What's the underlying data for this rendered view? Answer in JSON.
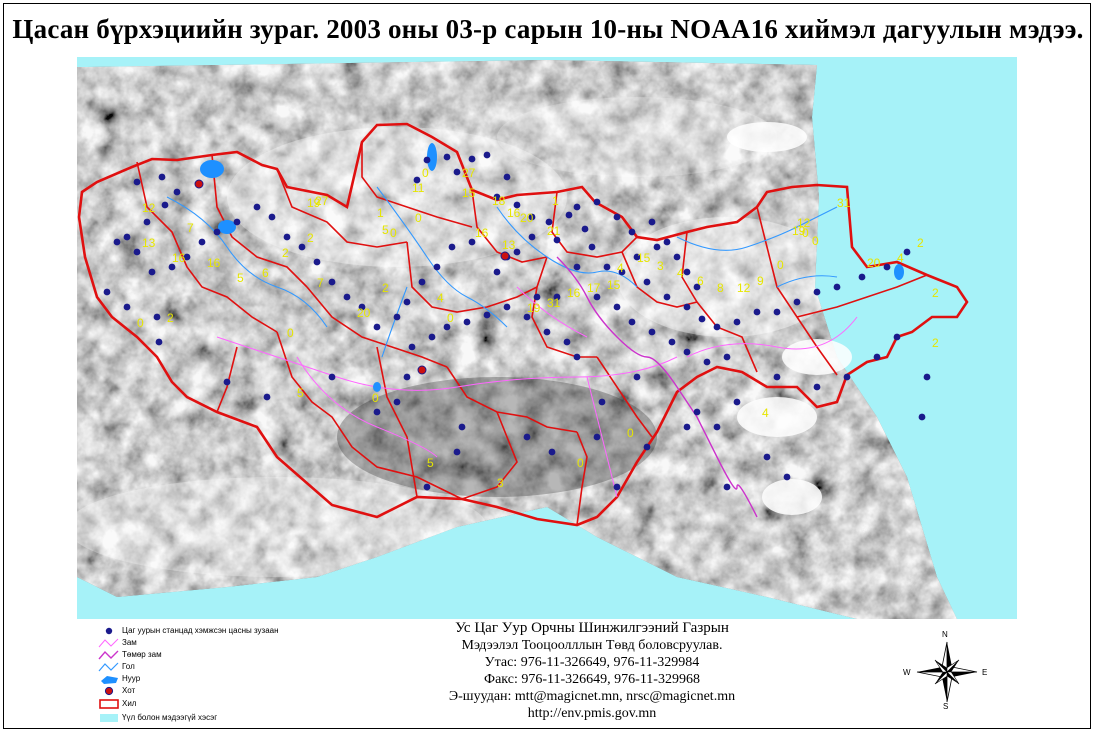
{
  "title": "Цасан бүрхэциийн зураг. 2003 оны 03-р сарын 10-ны NOAA16 хиймэл дагуулын мэдээ.",
  "map": {
    "colors": {
      "sea": "#a6f2f8",
      "border": "#e01010",
      "station": "#1a1a8c",
      "label": "#e6e600",
      "road": "#ff66ff",
      "railway": "#cc33cc",
      "river": "#3399ff",
      "lake": "#1e90ff",
      "city": "#cc1111"
    },
    "snow_depth_labels": [
      "11",
      "27",
      "0",
      "16",
      "21",
      "18",
      "15",
      "20",
      "13",
      "1",
      "0",
      "16",
      "2",
      "5",
      "27",
      "0",
      "1",
      "2",
      "2",
      "12",
      "13",
      "16",
      "19",
      "7",
      "6",
      "5",
      "2",
      "7",
      "16",
      "0",
      "0",
      "5",
      "20",
      "4",
      "0",
      "19",
      "31",
      "16",
      "17",
      "15",
      "4",
      "15",
      "3",
      "4",
      "6",
      "8",
      "12",
      "9",
      "0",
      "19",
      "12",
      "0",
      "31",
      "20",
      "4",
      "2",
      "2",
      "2",
      "0",
      "4",
      "0",
      "5",
      "3",
      "0",
      "0"
    ]
  },
  "legend": {
    "items": [
      {
        "icon": "station-icon",
        "label": "Цаг уурын станцад хэмжсэн цасны зузаан"
      },
      {
        "icon": "road-icon",
        "label": "Зам"
      },
      {
        "icon": "railway-icon",
        "label": "Төмөр зам"
      },
      {
        "icon": "river-icon",
        "label": "Гол"
      },
      {
        "icon": "lake-icon",
        "label": "Нуур"
      },
      {
        "icon": "city-icon",
        "label": "Хот"
      },
      {
        "icon": "province-border-icon",
        "label": "Хил"
      },
      {
        "icon": "cloud-area-icon",
        "label": "Үүл болон мэдээгүй хэсэг"
      }
    ]
  },
  "info": {
    "org": "Ус Цаг Уур Орчны Шинжилгээний Газрын",
    "dept": "Мэдээлэл Тооцоолллын Төвд боловсруулав.",
    "phone": "Утас: 976-11-326649, 976-11-329984",
    "fax": "Факс: 976-11-326649, 976-11-329968",
    "email": "Э-шуудан: mtt@magicnet.mn, nrsc@magicnet.mn",
    "url": "http://env.pmis.gov.mn"
  },
  "compass": {
    "n": "N",
    "s": "S",
    "e": "E",
    "w": "W"
  }
}
